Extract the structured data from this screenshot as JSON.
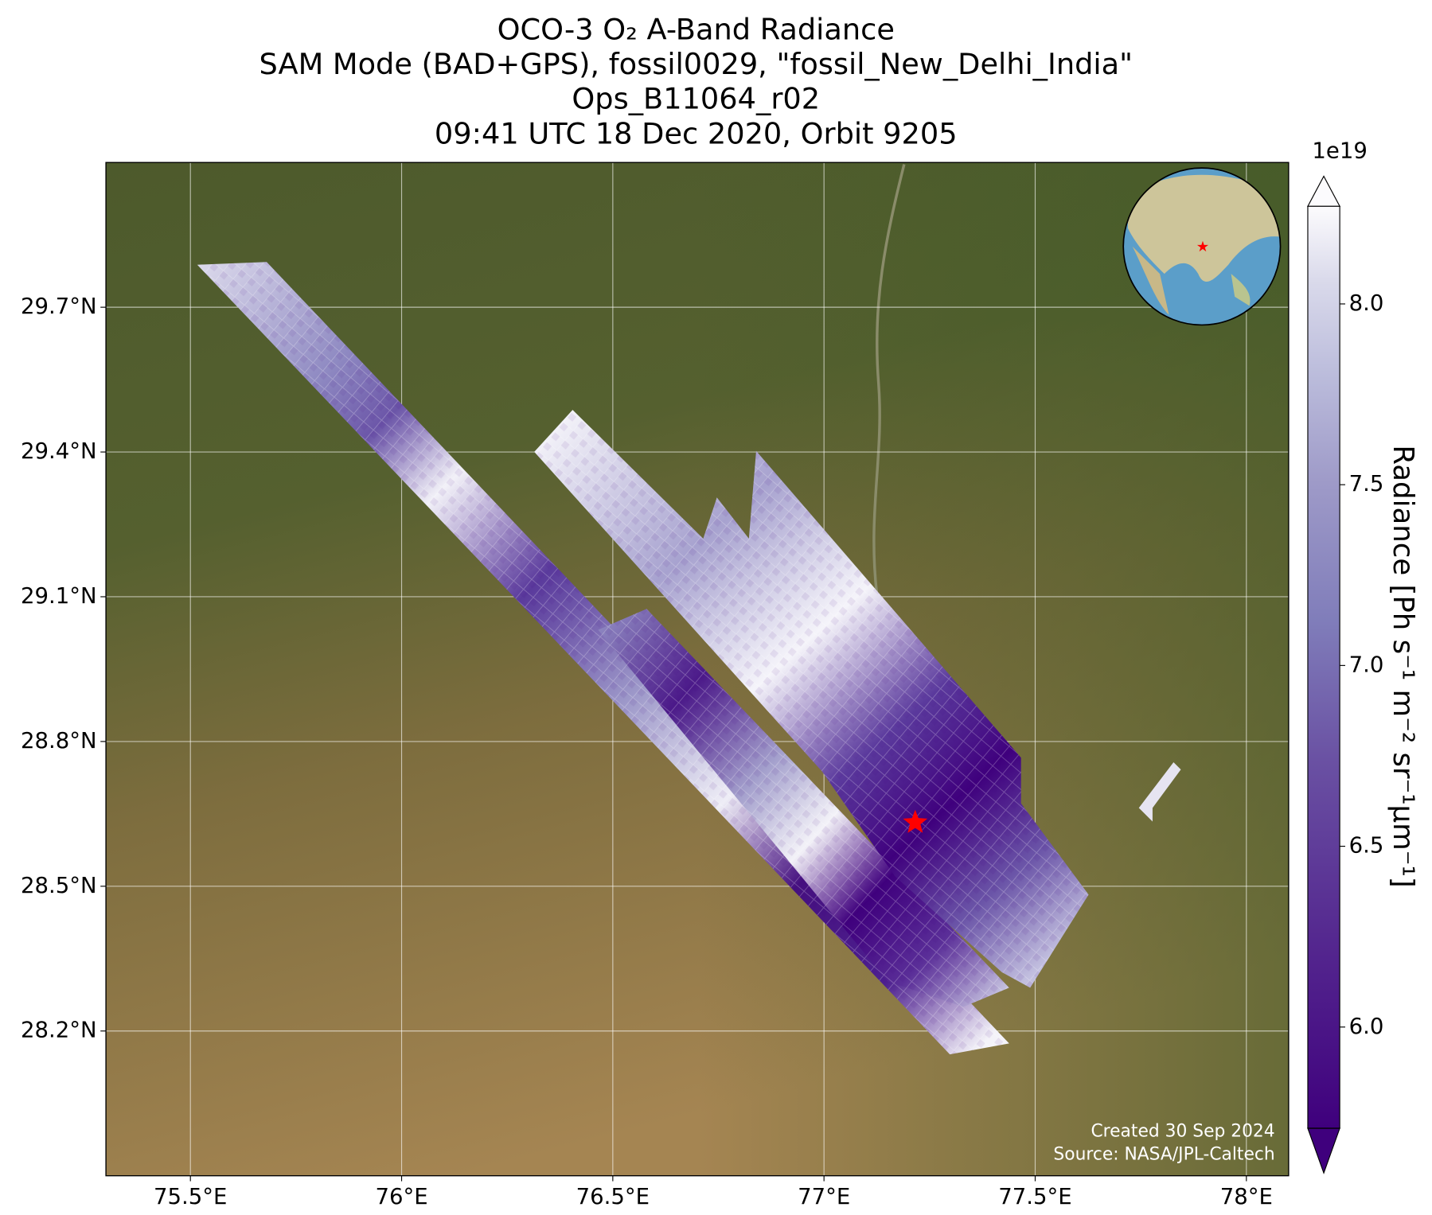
{
  "chart_data": {
    "type": "map",
    "title_lines": [
      "OCO-3 O₂ A-Band Radiance",
      "SAM Mode (BAD+GPS), fossil0029, \"fossil_New_Delhi_India\"",
      "Ops_B11064_r02",
      "09:41 UTC 18 Dec 2020, Orbit 9205"
    ],
    "xlim": [
      75.3,
      78.1
    ],
    "ylim": [
      27.9,
      30.0
    ],
    "xticks": [
      {
        "value": 75.5,
        "label": "75.5°E"
      },
      {
        "value": 76,
        "label": "76°E"
      },
      {
        "value": 76.5,
        "label": "76.5°E"
      },
      {
        "value": 77,
        "label": "77°E"
      },
      {
        "value": 77.5,
        "label": "77.5°E"
      },
      {
        "value": 78,
        "label": "78°E"
      }
    ],
    "yticks": [
      {
        "value": 28.2,
        "label": "28.2°N"
      },
      {
        "value": 28.5,
        "label": "28.5°N"
      },
      {
        "value": 28.8,
        "label": "28.8°N"
      },
      {
        "value": 29.1,
        "label": "29.1°N"
      },
      {
        "value": 29.4,
        "label": "29.4°N"
      },
      {
        "value": 29.7,
        "label": "29.7°N"
      }
    ],
    "grid": true,
    "target": {
      "lon": 77.216,
      "lat": 28.632,
      "color": "#ff0000"
    },
    "colorbar": {
      "label": "Radiance [Ph s⁻¹ m⁻² sr⁻¹μm⁻¹]",
      "offset_label": "1e19",
      "clim": [
        5.72,
        8.27
      ],
      "ticks": [
        {
          "value": 6,
          "label": "6.0"
        },
        {
          "value": 6.5,
          "label": "6.5"
        },
        {
          "value": 7,
          "label": "7.0"
        },
        {
          "value": 7.5,
          "label": "7.5"
        },
        {
          "value": 8,
          "label": "8.0"
        }
      ]
    },
    "credits": [
      "Created 30 Sep 2024",
      "Source: NASA/JPL-Caltech"
    ]
  }
}
